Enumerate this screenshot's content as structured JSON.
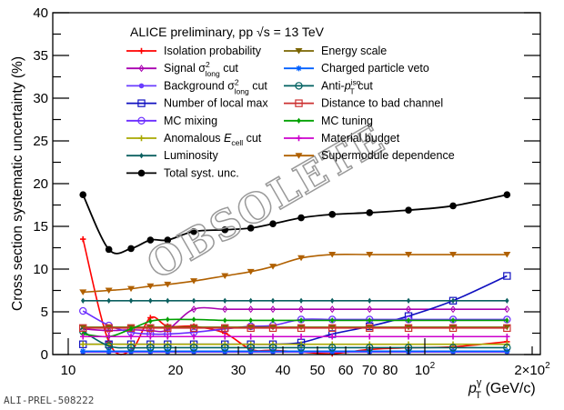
{
  "chart_data": {
    "type": "line",
    "title": "ALICE preliminary, pp √s = 13 TeV",
    "title_parts": {
      "pre": "ALICE preliminary, pp ",
      "root": "√s",
      "post": " = 13 TeV"
    },
    "ylabel": "Cross section systematic uncertainty (%)",
    "xlabel": {
      "p": "p",
      "sup": "γ",
      "sub": "T",
      "post": " (GeV/c)"
    },
    "xscale": "log",
    "xlim": [
      8.6,
      230
    ],
    "ylim": [
      0,
      40
    ],
    "yticks": [
      0,
      5,
      10,
      15,
      20,
      25,
      30,
      35,
      40
    ],
    "xtick_labels": [
      {
        "v": 10,
        "t": "10"
      },
      {
        "v": 20,
        "t": "20"
      },
      {
        "v": 30,
        "t": "30"
      },
      {
        "v": 40,
        "t": "40"
      },
      {
        "v": 50,
        "t": "50"
      },
      {
        "v": 60,
        "t": "60"
      },
      {
        "v": 70,
        "t": "70"
      },
      {
        "v": 80,
        "t": "80"
      },
      {
        "v": 100,
        "t": "10",
        "sup": "2"
      },
      {
        "v": 200,
        "t": "2×10",
        "sup": "2"
      }
    ],
    "legend_placement": "top-left",
    "x": [
      11,
      13,
      15,
      17,
      19,
      22.5,
      27.5,
      32.5,
      37.5,
      45,
      55,
      70,
      90,
      120,
      170
    ],
    "series": [
      {
        "name": "Isolation probability",
        "label": {
          "pre": "Isolation probability"
        },
        "color": "#ff0000",
        "marker": "plus",
        "values": [
          13.5,
          1.5,
          0.5,
          4.3,
          3.3,
          3.3,
          2.5,
          0.6,
          0.5,
          0.3,
          0.1,
          0.6,
          0.8,
          0.9,
          1.5
        ]
      },
      {
        "name": "Signal σ²long cut",
        "label": {
          "pre": "Signal σ",
          "sup": "2",
          "sub": "long",
          "post": " cut"
        },
        "color": "#a800b0",
        "marker": "diamond",
        "values": [
          3.0,
          2.8,
          2.9,
          2.8,
          2.9,
          5.3,
          5.3,
          5.3,
          5.3,
          5.3,
          5.3,
          5.3,
          5.3,
          5.3,
          5.3
        ]
      },
      {
        "name": "Background σ²long cut",
        "label": {
          "pre": "Background σ",
          "sup": "2",
          "sub": "long",
          "post": " cut"
        },
        "color": "#6a3cff",
        "marker": "dot",
        "values": [
          0.3,
          0.3,
          0.3,
          0.3,
          0.3,
          0.3,
          0.3,
          0.3,
          0.3,
          0.3,
          0.3,
          0.3,
          0.3,
          0.3,
          0.3
        ]
      },
      {
        "name": "Number of local max",
        "label": {
          "pre": "Number of local max"
        },
        "color": "#1010c0",
        "marker": "square",
        "values": [
          1.2,
          1.2,
          1.2,
          1.2,
          1.2,
          1.2,
          1.2,
          1.2,
          1.2,
          1.4,
          2.4,
          3.3,
          4.5,
          6.3,
          9.2
        ]
      },
      {
        "name": "MC mixing",
        "label": {
          "pre": "MC mixing"
        },
        "color": "#6a2cff",
        "marker": "circle",
        "values": [
          5.1,
          3.4,
          2.6,
          2.4,
          2.4,
          2.6,
          3.0,
          3.3,
          3.4,
          4.1,
          4.1,
          4.1,
          4.1,
          4.1,
          4.1
        ]
      },
      {
        "name": "Anomalous Ecell cut",
        "label": {
          "pre": "Anomalous ",
          "ital": "E",
          "sub": "cell",
          "post": " cut"
        },
        "color": "#a8a800",
        "marker": "plus",
        "values": [
          1.2,
          1.2,
          1.2,
          1.2,
          1.2,
          1.2,
          1.2,
          1.2,
          1.2,
          1.2,
          1.2,
          1.2,
          1.2,
          1.2,
          1.2
        ]
      },
      {
        "name": "Luminosity",
        "label": {
          "pre": "Luminosity"
        },
        "color": "#0c6060",
        "marker": "diamondfill",
        "values": [
          6.3,
          6.3,
          6.3,
          6.3,
          6.3,
          6.3,
          6.3,
          6.3,
          6.3,
          6.3,
          6.3,
          6.3,
          6.3,
          6.3,
          6.3
        ]
      },
      {
        "name": "Total syst. unc.",
        "label": {
          "pre": "Total syst. unc."
        },
        "color": "#000000",
        "marker": "bigdot",
        "values": [
          18.7,
          12.3,
          12.4,
          13.4,
          13.4,
          14.4,
          14.6,
          14.8,
          15.3,
          16.0,
          16.4,
          16.6,
          16.9,
          17.4,
          18.7
        ]
      },
      {
        "name": "Energy scale",
        "label": {
          "pre": "Energy scale"
        },
        "color": "#7a6400",
        "marker": "tri",
        "values": [
          3.2,
          3.2,
          3.2,
          3.2,
          3.2,
          3.2,
          3.2,
          3.2,
          3.2,
          3.2,
          3.2,
          3.2,
          3.2,
          3.2,
          3.2
        ]
      },
      {
        "name": "Charged particle veto",
        "label": {
          "pre": "Charged particle veto"
        },
        "color": "#0060ff",
        "marker": "star",
        "values": [
          0.4,
          0.4,
          0.4,
          0.4,
          0.4,
          0.4,
          0.4,
          0.4,
          0.4,
          0.4,
          0.4,
          0.4,
          0.4,
          0.4,
          0.4
        ]
      },
      {
        "name": "Anti-pTiso cut",
        "label": {
          "pre": "Anti-",
          "ital": "p",
          "sup": "iso",
          "sub": "T",
          "post": " cut"
        },
        "color": "#006060",
        "marker": "circle",
        "values": [
          2.7,
          1.0,
          0.8,
          0.8,
          0.8,
          0.8,
          0.8,
          0.8,
          0.8,
          0.8,
          0.8,
          0.8,
          0.8,
          0.8,
          0.8
        ]
      },
      {
        "name": "Distance to bad channel",
        "label": {
          "pre": "Distance to bad channel"
        },
        "color": "#cc3030",
        "marker": "square",
        "values": [
          3.1,
          3.1,
          3.1,
          3.1,
          3.1,
          3.1,
          3.1,
          3.1,
          3.1,
          3.1,
          3.1,
          3.1,
          3.1,
          3.1,
          3.1
        ]
      },
      {
        "name": "MC tuning",
        "label": {
          "pre": "MC tuning"
        },
        "color": "#00a000",
        "marker": "diamondfill",
        "values": [
          2.4,
          2.1,
          3.0,
          3.9,
          4.1,
          4.1,
          4.0,
          4.0,
          4.0,
          4.0,
          4.0,
          4.0,
          4.0,
          4.0,
          4.0
        ]
      },
      {
        "name": "Material budget",
        "label": {
          "pre": "Material budget"
        },
        "color": "#cc00cc",
        "marker": "plus",
        "values": [
          2.1,
          2.1,
          2.1,
          2.1,
          2.1,
          2.1,
          2.1,
          2.1,
          2.1,
          2.1,
          2.1,
          2.1,
          2.1,
          2.1,
          2.1
        ]
      },
      {
        "name": "Supermodule dependence",
        "label": {
          "pre": "Supermodule dependence"
        },
        "color": "#b06000",
        "marker": "tri",
        "values": [
          7.3,
          7.5,
          7.7,
          8.0,
          8.2,
          8.6,
          9.2,
          9.7,
          10.3,
          11.3,
          11.7,
          11.7,
          11.7,
          11.7,
          11.7
        ]
      }
    ]
  },
  "watermark": "OBSOLETE",
  "figure_id": "ALI-PREL-508222"
}
